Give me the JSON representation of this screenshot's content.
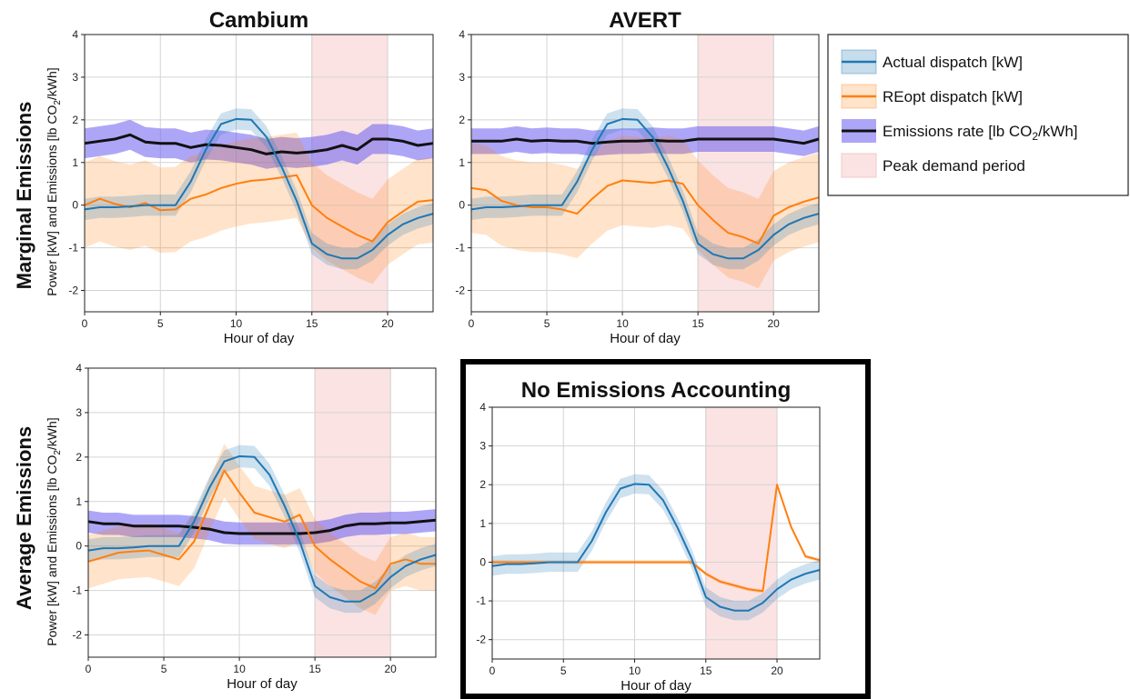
{
  "figure": {
    "row_labels": [
      "Marginal Emissions",
      "Average Emissions"
    ],
    "y_label_parts": [
      "Power [kW] and Emissions [lb CO",
      "2",
      "/kWh]"
    ]
  },
  "legend": {
    "items": [
      {
        "key": "actual",
        "label": "Actual dispatch [kW]",
        "color": "#1f77b4"
      },
      {
        "key": "reopt",
        "label": "REopt dispatch [kW]",
        "color": "#ff7f0e"
      },
      {
        "key": "emis",
        "label_parts": [
          "Emissions rate [lb CO",
          "2",
          "/kWh]"
        ],
        "color": "#111111",
        "band_color": "#6a5cf0"
      },
      {
        "key": "peak",
        "label": "Peak demand period",
        "color": "#fbe3e3"
      }
    ]
  },
  "chart_data": [
    {
      "type": "line",
      "title": "Cambium",
      "xlabel": "Hour of day",
      "ylabel": "Power [kW] and Emissions [lb CO2/kWh]",
      "xlim": [
        0,
        23
      ],
      "ylim": [
        -2.5,
        4
      ],
      "x_ticks": [
        0,
        5,
        10,
        15,
        20
      ],
      "y_ticks": [
        -2,
        -1,
        0,
        1,
        2,
        3,
        4
      ],
      "grid": true,
      "peak_period": [
        15,
        20
      ],
      "x": [
        0,
        1,
        2,
        3,
        4,
        5,
        6,
        7,
        8,
        9,
        10,
        11,
        12,
        13,
        14,
        15,
        16,
        17,
        18,
        19,
        20,
        21,
        22,
        23
      ],
      "series": [
        {
          "key": "actual",
          "values": [
            -0.1,
            -0.05,
            -0.05,
            -0.03,
            0,
            0,
            0,
            0.55,
            1.3,
            1.9,
            2.02,
            2.0,
            1.6,
            0.9,
            0.1,
            -0.9,
            -1.15,
            -1.25,
            -1.25,
            -1.05,
            -0.7,
            -0.45,
            -0.3,
            -0.2
          ],
          "band": 0.25
        },
        {
          "key": "reopt",
          "values": [
            0,
            0.15,
            0.03,
            -0.05,
            0.05,
            -0.12,
            -0.1,
            0.15,
            0.25,
            0.4,
            0.5,
            0.57,
            0.6,
            0.65,
            0.7,
            0,
            -0.3,
            -0.5,
            -0.7,
            -0.85,
            -0.4,
            -0.15,
            0.08,
            0.12
          ],
          "band": 1.0
        },
        {
          "key": "emis",
          "values": [
            1.45,
            1.5,
            1.55,
            1.65,
            1.48,
            1.45,
            1.45,
            1.35,
            1.42,
            1.4,
            1.35,
            1.3,
            1.2,
            1.25,
            1.22,
            1.25,
            1.3,
            1.4,
            1.3,
            1.55,
            1.55,
            1.5,
            1.4,
            1.45
          ],
          "band": 0.35
        }
      ]
    },
    {
      "type": "line",
      "title": "AVERT",
      "xlabel": "Hour of day",
      "xlim": [
        0,
        23
      ],
      "ylim": [
        -2.5,
        4
      ],
      "x_ticks": [
        0,
        5,
        10,
        15,
        20
      ],
      "y_ticks": [
        -2,
        -1,
        0,
        1,
        2,
        3,
        4
      ],
      "grid": true,
      "peak_period": [
        15,
        20
      ],
      "x": [
        0,
        1,
        2,
        3,
        4,
        5,
        6,
        7,
        8,
        9,
        10,
        11,
        12,
        13,
        14,
        15,
        16,
        17,
        18,
        19,
        20,
        21,
        22,
        23
      ],
      "series": [
        {
          "key": "actual",
          "values": [
            -0.1,
            -0.05,
            -0.05,
            -0.03,
            0,
            0,
            0,
            0.55,
            1.3,
            1.9,
            2.02,
            2.0,
            1.6,
            0.9,
            0.1,
            -0.9,
            -1.15,
            -1.25,
            -1.25,
            -1.05,
            -0.7,
            -0.45,
            -0.3,
            -0.2
          ],
          "band": 0.25
        },
        {
          "key": "reopt",
          "values": [
            0.4,
            0.35,
            0.1,
            0,
            -0.05,
            -0.05,
            -0.1,
            -0.2,
            0.15,
            0.45,
            0.58,
            0.55,
            0.52,
            0.58,
            0.5,
            0,
            -0.35,
            -0.65,
            -0.75,
            -0.9,
            -0.25,
            -0.05,
            0.08,
            0.18
          ],
          "band": 1.05
        },
        {
          "key": "emis",
          "values": [
            1.5,
            1.5,
            1.5,
            1.55,
            1.5,
            1.52,
            1.5,
            1.5,
            1.45,
            1.48,
            1.5,
            1.5,
            1.52,
            1.5,
            1.5,
            1.55,
            1.55,
            1.55,
            1.55,
            1.55,
            1.55,
            1.5,
            1.45,
            1.55
          ],
          "band": 0.3
        }
      ]
    },
    {
      "type": "line",
      "title": "",
      "xlabel": "Hour of day",
      "ylabel": "Power [kW] and Emissions [lb CO2/kWh]",
      "xlim": [
        0,
        23
      ],
      "ylim": [
        -2.5,
        4
      ],
      "x_ticks": [
        0,
        5,
        10,
        15,
        20
      ],
      "y_ticks": [
        -2,
        -1,
        0,
        1,
        2,
        3,
        4
      ],
      "grid": true,
      "peak_period": [
        15,
        20
      ],
      "x": [
        0,
        1,
        2,
        3,
        4,
        5,
        6,
        7,
        8,
        9,
        10,
        11,
        12,
        13,
        14,
        15,
        16,
        17,
        18,
        19,
        20,
        21,
        22,
        23
      ],
      "series": [
        {
          "key": "actual",
          "values": [
            -0.1,
            -0.05,
            -0.05,
            -0.03,
            0,
            0,
            0,
            0.55,
            1.3,
            1.9,
            2.02,
            2.0,
            1.6,
            0.9,
            0.1,
            -0.9,
            -1.15,
            -1.25,
            -1.25,
            -1.05,
            -0.7,
            -0.45,
            -0.3,
            -0.2
          ],
          "band": 0.25
        },
        {
          "key": "reopt",
          "values": [
            -0.35,
            -0.25,
            -0.15,
            -0.12,
            -0.1,
            -0.2,
            -0.3,
            0.1,
            0.9,
            1.7,
            1.2,
            0.75,
            0.65,
            0.55,
            0.7,
            0,
            -0.3,
            -0.55,
            -0.8,
            -0.95,
            -0.4,
            -0.3,
            -0.4,
            -0.4
          ],
          "band": 0.6
        },
        {
          "key": "emis",
          "values": [
            0.55,
            0.5,
            0.5,
            0.45,
            0.45,
            0.45,
            0.45,
            0.42,
            0.38,
            0.3,
            0.28,
            0.28,
            0.28,
            0.28,
            0.28,
            0.3,
            0.35,
            0.45,
            0.5,
            0.5,
            0.52,
            0.52,
            0.55,
            0.58
          ],
          "band": 0.25
        }
      ]
    },
    {
      "type": "line",
      "title": "No Emissions Accounting",
      "xlabel": "Hour of day",
      "xlim": [
        0,
        23
      ],
      "ylim": [
        -2.5,
        4
      ],
      "x_ticks": [
        0,
        5,
        10,
        15,
        20
      ],
      "y_ticks": [
        -2,
        -1,
        0,
        1,
        2,
        3,
        4
      ],
      "grid": true,
      "peak_period": [
        15,
        20
      ],
      "x": [
        0,
        1,
        2,
        3,
        4,
        5,
        6,
        7,
        8,
        9,
        10,
        11,
        12,
        13,
        14,
        15,
        16,
        17,
        18,
        19,
        20,
        21,
        22,
        23
      ],
      "series": [
        {
          "key": "actual",
          "values": [
            -0.1,
            -0.05,
            -0.05,
            -0.03,
            0,
            0,
            0,
            0.55,
            1.3,
            1.9,
            2.02,
            2.0,
            1.6,
            0.9,
            0.1,
            -0.9,
            -1.15,
            -1.25,
            -1.25,
            -1.05,
            -0.7,
            -0.45,
            -0.3,
            -0.2
          ],
          "band": 0.25
        },
        {
          "key": "reopt",
          "values": [
            0,
            0,
            0,
            0,
            0,
            0,
            0,
            0,
            0,
            0,
            0,
            0,
            0,
            0,
            0,
            -0.3,
            -0.5,
            -0.6,
            -0.7,
            -0.75,
            2.0,
            0.9,
            0.15,
            0.05
          ],
          "band": 0.05
        }
      ]
    }
  ]
}
